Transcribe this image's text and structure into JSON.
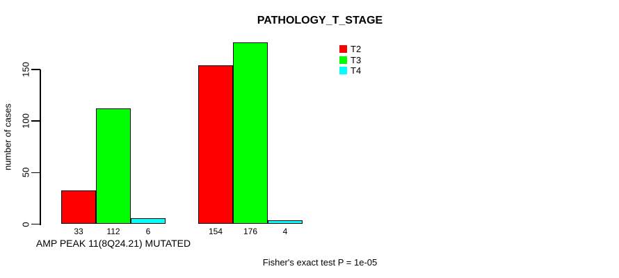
{
  "chart_data": {
    "type": "bar",
    "title": "PATHOLOGY_T_STAGE",
    "ylabel": "number of cases",
    "xlabel": "",
    "ylim": [
      0,
      150
    ],
    "yticks": [
      0,
      50,
      100,
      150
    ],
    "grid": false,
    "legend_position": "top-right-inside",
    "categories": [
      "AMP PEAK 11(8Q24.21) MUTATED",
      ""
    ],
    "series": [
      {
        "name": "T2",
        "color": "#ff0000",
        "values": [
          33,
          154
        ]
      },
      {
        "name": "T3",
        "color": "#00ff00",
        "values": [
          112,
          176
        ]
      },
      {
        "name": "T4",
        "color": "#00ffff",
        "values": [
          6,
          4
        ]
      }
    ],
    "bar_value_labels": [
      [
        "33",
        "112",
        "6"
      ],
      [
        "154",
        "176",
        "4"
      ]
    ],
    "annotation": "Fisher's exact test P = 1e-05"
  }
}
